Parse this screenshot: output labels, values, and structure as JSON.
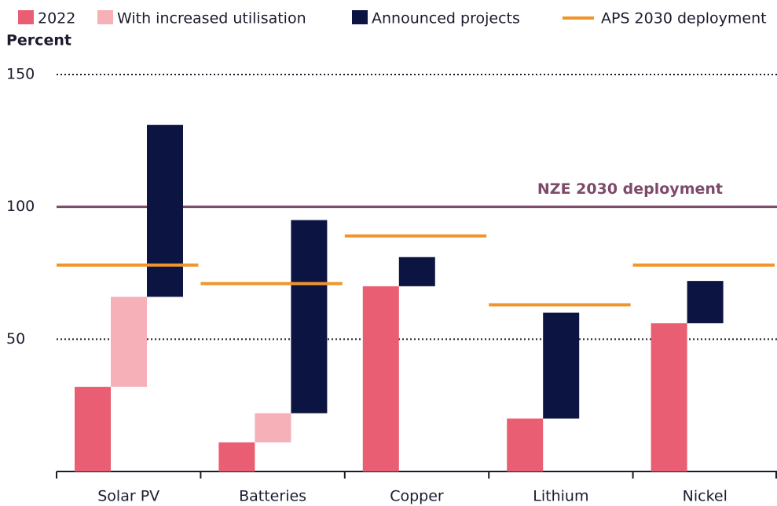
{
  "chart_data": {
    "type": "stacked-bar",
    "y_label": "Percent",
    "categories": [
      "Solar PV",
      "Batteries",
      "Copper",
      "Lithium",
      "Nickel"
    ],
    "series": [
      {
        "name": "2022",
        "color": "#e95e72",
        "values": [
          32,
          11,
          70,
          20,
          56
        ]
      },
      {
        "name": "With increased utilisation",
        "color": "#f5b0b8",
        "values": [
          34,
          11,
          null,
          null,
          null
        ]
      },
      {
        "name": "Announced projects",
        "color": "#0c1442",
        "values": [
          65,
          73,
          11,
          40,
          16
        ]
      }
    ],
    "markers": {
      "name": "APS 2030 deployment",
      "color": "#f0952b",
      "values": [
        78,
        71,
        89,
        63,
        78
      ]
    },
    "reference_lines": [
      {
        "label": "NZE 2030 deployment",
        "value": 100,
        "color": "#7d4a6a"
      }
    ],
    "ylim": [
      0,
      150
    ],
    "yticks": [
      50,
      100,
      150
    ],
    "grid": true
  }
}
